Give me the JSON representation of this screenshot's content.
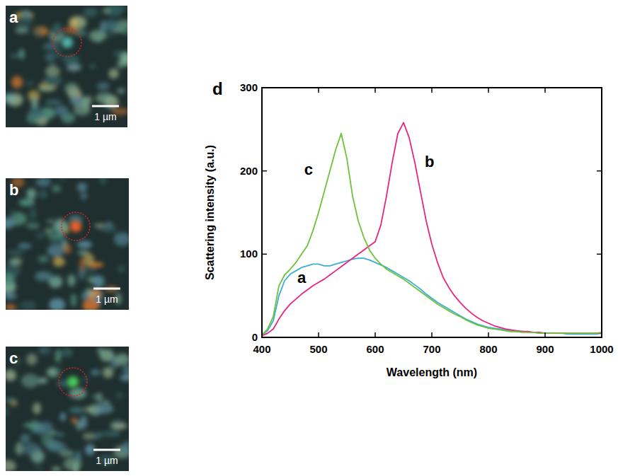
{
  "figure": {
    "panels": [
      {
        "label": "a",
        "scale_bar": "1 µm"
      },
      {
        "label": "b",
        "scale_bar": "1 µm"
      },
      {
        "label": "c",
        "scale_bar": "1 µm"
      }
    ],
    "chart_label": "d"
  },
  "chart_data": {
    "type": "line",
    "x_label": "Wavelength (nm)",
    "y_label": "Scattering intensity (a.u.)",
    "x": [
      400,
      410,
      420,
      430,
      440,
      450,
      460,
      470,
      480,
      490,
      500,
      510,
      520,
      530,
      540,
      550,
      560,
      570,
      580,
      590,
      600,
      610,
      620,
      630,
      640,
      650,
      660,
      670,
      680,
      690,
      700,
      710,
      720,
      730,
      740,
      750,
      760,
      770,
      780,
      790,
      800,
      810,
      820,
      830,
      840,
      850,
      860,
      870,
      880,
      890,
      900,
      910,
      920,
      930,
      940,
      950,
      960,
      970,
      980,
      990,
      1000
    ],
    "series": [
      {
        "name": "a",
        "color": "#3aaed8",
        "values": [
          3,
          8,
          20,
          50,
          68,
          76,
          80,
          84,
          86,
          88,
          88,
          86,
          86,
          88,
          90,
          92,
          94,
          95,
          95,
          93,
          90,
          87,
          84,
          80,
          76,
          72,
          68,
          63,
          58,
          52,
          47,
          42,
          38,
          34,
          30,
          26,
          22,
          19,
          16,
          14,
          12,
          11,
          10,
          9,
          8,
          7,
          7,
          6,
          6,
          5,
          5,
          5,
          5,
          5,
          4,
          4,
          4,
          4,
          4,
          4,
          5
        ]
      },
      {
        "name": "b",
        "color": "#e8257e",
        "values": [
          2,
          5,
          10,
          22,
          32,
          40,
          46,
          52,
          57,
          62,
          66,
          70,
          75,
          80,
          85,
          90,
          95,
          100,
          105,
          110,
          115,
          135,
          170,
          210,
          245,
          258,
          240,
          210,
          175,
          140,
          112,
          90,
          72,
          60,
          50,
          42,
          35,
          29,
          24,
          20,
          17,
          14,
          12,
          10,
          9,
          8,
          7,
          7,
          6,
          6,
          5,
          5,
          5,
          5,
          5,
          5,
          5,
          5,
          5,
          5,
          5
        ]
      },
      {
        "name": "c",
        "color": "#6cc23a",
        "values": [
          3,
          10,
          25,
          62,
          75,
          82,
          90,
          100,
          110,
          128,
          150,
          175,
          200,
          225,
          245,
          215,
          170,
          140,
          120,
          105,
          95,
          88,
          82,
          78,
          74,
          70,
          65,
          60,
          55,
          50,
          45,
          40,
          36,
          32,
          28,
          25,
          21,
          18,
          15,
          13,
          11,
          10,
          9,
          8,
          7,
          7,
          6,
          6,
          6,
          5,
          5,
          5,
          5,
          5,
          5,
          5,
          5,
          5,
          5,
          5,
          6
        ]
      }
    ],
    "xlim": [
      400,
      1000
    ],
    "xticks": [
      400,
      500,
      600,
      700,
      800,
      900,
      1000
    ],
    "ylim": [
      0,
      300
    ],
    "yticks": [
      0,
      100,
      200,
      300
    ],
    "grid": false
  }
}
